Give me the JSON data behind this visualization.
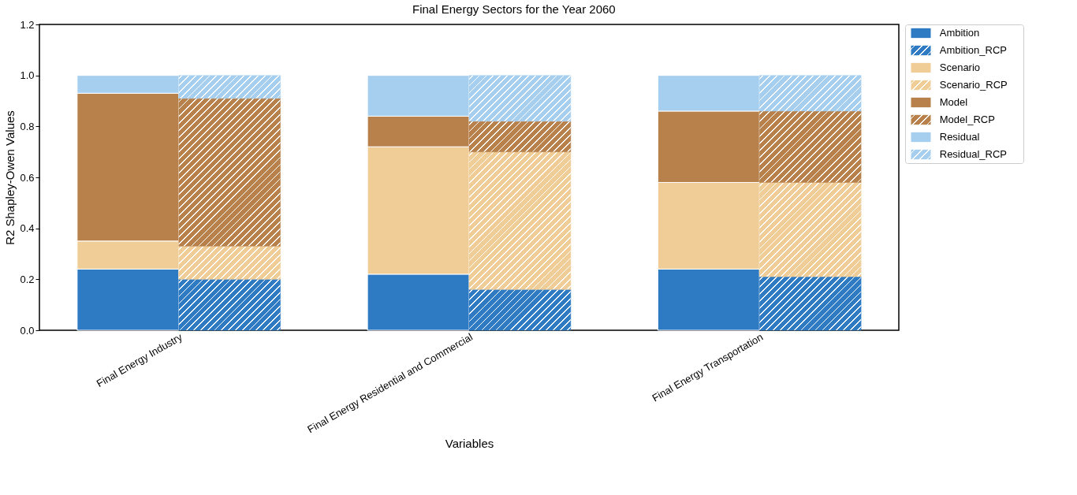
{
  "chart_data": {
    "type": "bar",
    "stacked": true,
    "title": "Final Energy Sectors for the Year 2060",
    "xlabel": "Variables",
    "ylabel": "R2 Shapley-Owen Values",
    "categories": [
      "Final Energy Industry",
      null,
      "Final Energy Residential and Commercial",
      null,
      "Final Energy Transportation",
      null
    ],
    "series": [
      {
        "name": "Ambition",
        "color": "#2e7bc4",
        "values": [
          0.24,
          null,
          0.22,
          null,
          0.24,
          null
        ]
      },
      {
        "name": "Ambition_RCP",
        "color": "#2e7bc4",
        "values": [
          null,
          0.2,
          null,
          0.16,
          null,
          0.21
        ]
      },
      {
        "name": "Scenario",
        "color": "#f0cd96",
        "values": [
          0.11,
          null,
          0.5,
          null,
          0.34,
          null
        ]
      },
      {
        "name": "Scenario_RCP",
        "color": "#f0cd96",
        "values": [
          null,
          0.13,
          null,
          0.54,
          null,
          0.37
        ]
      },
      {
        "name": "Model",
        "color": "#b8804a",
        "values": [
          0.58,
          null,
          0.12,
          null,
          0.28,
          null
        ]
      },
      {
        "name": "Model_RCP",
        "color": "#b8804a",
        "values": [
          null,
          0.58,
          null,
          0.12,
          null,
          0.28
        ]
      },
      {
        "name": "Residual",
        "color": "#a6cfef",
        "values": [
          0.07,
          null,
          0.16,
          null,
          0.14,
          null
        ]
      },
      {
        "name": "Residual_RCP",
        "color": "#a6cfef",
        "values": [
          null,
          0.09,
          null,
          0.18,
          null,
          0.14
        ]
      }
    ],
    "ylim": [
      0,
      1.2
    ],
    "yticks": [
      {
        "value": 0,
        "label": "0.0"
      },
      {
        "value": 0.2,
        "label": "0.2"
      },
      {
        "value": 0.4,
        "label": "0.4"
      },
      {
        "value": 0.6,
        "label": "0.6"
      },
      {
        "value": 0.8,
        "label": "0.8"
      },
      {
        "value": 1,
        "label": "1.0"
      },
      {
        "value": 1.2,
        "label": "1.2"
      }
    ],
    "grid": false,
    "legend": "right"
  }
}
